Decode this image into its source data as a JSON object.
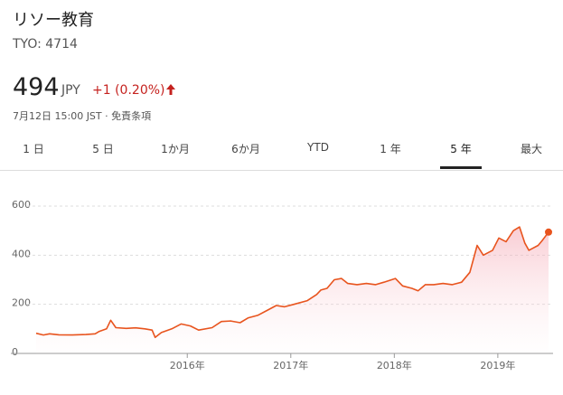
{
  "header": {
    "name": "リソー教育",
    "ticker": "TYO: 4714"
  },
  "quote": {
    "price": "494",
    "currency": "JPY",
    "change": "+1 (0.20%)",
    "timestamp": "7月12日 15:00 JST",
    "disclaimer": "免責条項"
  },
  "tabs": [
    "1 日",
    "5 日",
    "1か月",
    "6か月",
    "YTD",
    "1 年",
    "5 年",
    "最大"
  ],
  "selected_tab": 6,
  "chart_data": {
    "type": "area",
    "x": [
      2014.54,
      2014.61,
      2014.67,
      2014.76,
      2014.89,
      2015.02,
      2015.11,
      2015.15,
      2015.22,
      2015.26,
      2015.31,
      2015.41,
      2015.5,
      2015.59,
      2015.66,
      2015.69,
      2015.75,
      2015.85,
      2015.94,
      2016.03,
      2016.11,
      2016.24,
      2016.33,
      2016.42,
      2016.51,
      2016.59,
      2016.68,
      2016.77,
      2016.86,
      2016.94,
      2017.03,
      2017.16,
      2017.25,
      2017.29,
      2017.35,
      2017.42,
      2017.49,
      2017.55,
      2017.64,
      2017.73,
      2017.82,
      2017.9,
      2018.01,
      2018.08,
      2018.17,
      2018.23,
      2018.3,
      2018.38,
      2018.47,
      2018.56,
      2018.65,
      2018.73,
      2018.8,
      2018.86,
      2018.95,
      2019.01,
      2019.08,
      2019.15,
      2019.21,
      2019.26,
      2019.3,
      2019.39,
      2019.43,
      2019.49
    ],
    "values": [
      82,
      75,
      80,
      76,
      75,
      77,
      80,
      90,
      100,
      135,
      105,
      102,
      104,
      100,
      95,
      65,
      85,
      100,
      120,
      112,
      95,
      105,
      130,
      132,
      125,
      145,
      155,
      175,
      195,
      190,
      200,
      215,
      240,
      258,
      265,
      300,
      305,
      285,
      280,
      285,
      280,
      290,
      305,
      275,
      265,
      255,
      280,
      280,
      285,
      280,
      290,
      330,
      440,
      400,
      420,
      470,
      455,
      500,
      515,
      450,
      420,
      440,
      460,
      494
    ],
    "color": "#e8541e",
    "xlim": [
      2014.54,
      2019.49
    ],
    "xticks": [
      {
        "value": 2016,
        "label": "2016年"
      },
      {
        "value": 2017,
        "label": "2017年"
      },
      {
        "value": 2018,
        "label": "2018年"
      },
      {
        "value": 2019,
        "label": "2019年"
      }
    ],
    "ylim": [
      0,
      600
    ],
    "yticks": [
      0,
      200,
      400,
      600
    ],
    "grid": true
  }
}
